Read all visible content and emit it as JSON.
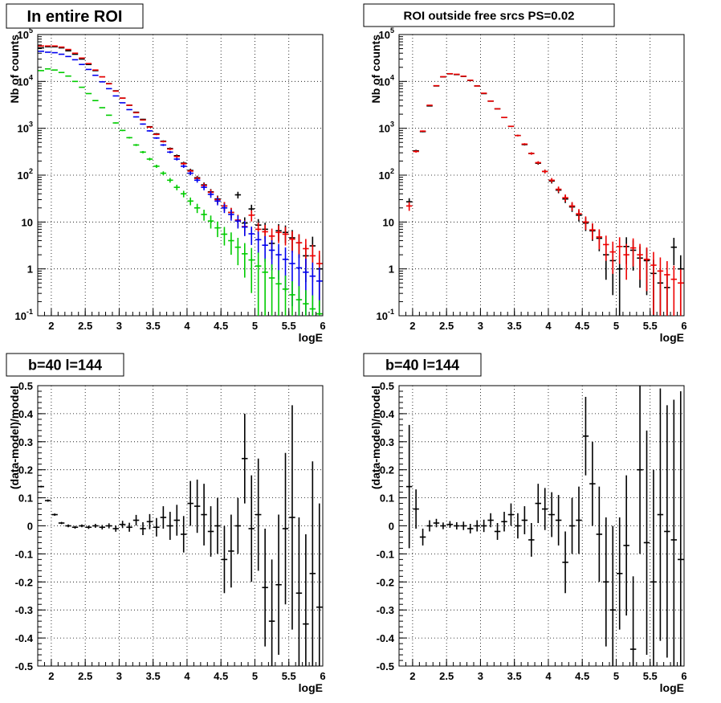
{
  "chart_data": [
    {
      "type": "scatter",
      "title": "In entire ROI",
      "xlabel": "logE",
      "ylabel": "Nb of counts",
      "xlim": [
        1.8,
        6.0
      ],
      "ylim": [
        0.1,
        100000
      ],
      "yscale": "log",
      "grid": true,
      "x_ticks": [
        "2",
        "2.5",
        "3",
        "3.5",
        "4",
        "4.5",
        "5",
        "5.5",
        "6"
      ],
      "y_ticks": [
        "10^-1",
        "1",
        "10",
        "10^2",
        "10^3",
        "10^4",
        "10^5"
      ],
      "series": [
        {
          "color": "#000000",
          "x": [
            1.85,
            1.95,
            2.05,
            2.15,
            2.25,
            2.35,
            2.45,
            2.55,
            2.65,
            2.75,
            2.85,
            2.95,
            3.05,
            3.15,
            3.25,
            3.35,
            3.45,
            3.55,
            3.65,
            3.75,
            3.85,
            3.95,
            4.05,
            4.15,
            4.25,
            4.35,
            4.45,
            4.55,
            4.65,
            4.75,
            4.85,
            4.95,
            5.05,
            5.15,
            5.25,
            5.35,
            5.45,
            5.55,
            5.65,
            5.75,
            5.85,
            5.95
          ],
          "y": [
            52000,
            55000,
            55000,
            52000,
            45000,
            38000,
            30000,
            23000,
            17000,
            12500,
            9000,
            6300,
            4400,
            3100,
            2200,
            1550,
            1080,
            760,
            530,
            370,
            260,
            180,
            126,
            88,
            62,
            44,
            31,
            22,
            16,
            38,
            9.5,
            19,
            8.6,
            7,
            3.5,
            6.5,
            6,
            4.6,
            3.6,
            1.9,
            3.1,
            1
          ]
        },
        {
          "color": "#ee0000",
          "x": [
            1.85,
            1.95,
            2.05,
            2.15,
            2.25,
            2.35,
            2.45,
            2.55,
            2.65,
            2.75,
            2.85,
            2.95,
            3.05,
            3.15,
            3.25,
            3.35,
            3.45,
            3.55,
            3.65,
            3.75,
            3.85,
            3.95,
            4.05,
            4.15,
            4.25,
            4.35,
            4.45,
            4.55,
            4.65,
            4.75,
            4.85,
            4.95,
            5.05,
            5.15,
            5.25,
            5.35,
            5.45,
            5.55,
            5.65,
            5.75,
            5.85,
            5.95
          ],
          "y": [
            57000,
            57000,
            57000,
            54000,
            48000,
            40000,
            31500,
            24000,
            17500,
            12500,
            8900,
            6200,
            4400,
            3100,
            2150,
            1500,
            1060,
            740,
            520,
            360,
            250,
            175,
            122,
            85,
            60,
            43,
            30,
            22,
            16,
            11,
            8,
            14,
            7,
            6.2,
            5,
            6,
            5.5,
            4.3,
            3.6,
            2.7,
            1.9,
            1.3
          ]
        },
        {
          "color": "#0000ee",
          "x": [
            1.85,
            1.95,
            2.05,
            2.15,
            2.25,
            2.35,
            2.45,
            2.55,
            2.65,
            2.75,
            2.85,
            2.95,
            3.05,
            3.15,
            3.25,
            3.35,
            3.45,
            3.55,
            3.65,
            3.75,
            3.85,
            3.95,
            4.05,
            4.15,
            4.25,
            4.35,
            4.45,
            4.55,
            4.65,
            4.75,
            4.85,
            4.95,
            5.05,
            5.15,
            5.25,
            5.35,
            5.45,
            5.55,
            5.65,
            5.75,
            5.85,
            5.95
          ],
          "y": [
            44000,
            42000,
            41000,
            38000,
            34000,
            29000,
            23000,
            18000,
            13500,
            9800,
            7000,
            4900,
            3500,
            2500,
            1750,
            1230,
            880,
            620,
            440,
            310,
            220,
            155,
            110,
            78,
            55,
            39,
            28,
            20,
            14.5,
            10.5,
            7.8,
            5.6,
            4.2,
            3.2,
            2.5,
            2,
            1.6,
            1.3,
            1.05,
            0.85,
            0.7,
            0.55
          ]
        },
        {
          "color": "#00cc00",
          "x": [
            1.85,
            1.95,
            2.05,
            2.15,
            2.25,
            2.35,
            2.45,
            2.55,
            2.65,
            2.75,
            2.85,
            2.95,
            3.05,
            3.15,
            3.25,
            3.35,
            3.45,
            3.55,
            3.65,
            3.75,
            3.85,
            3.95,
            4.05,
            4.15,
            4.25,
            4.35,
            4.45,
            4.55,
            4.65,
            4.75,
            4.85,
            4.95,
            5.05,
            5.15,
            5.25,
            5.35,
            5.45,
            5.55,
            5.65,
            5.75,
            5.85,
            5.95
          ],
          "y": [
            17000,
            18500,
            17500,
            15500,
            13000,
            10000,
            7500,
            5500,
            3900,
            2750,
            1900,
            1300,
            900,
            630,
            440,
            310,
            220,
            155,
            110,
            78,
            55,
            40,
            28,
            20,
            14.5,
            10.5,
            7.5,
            5.5,
            4,
            2.9,
            2.1,
            1.55,
            1.15,
            0.85,
            0.64,
            0.48,
            0.37,
            0.28,
            0.22,
            0.18,
            0.14,
            0.11
          ]
        }
      ]
    },
    {
      "type": "scatter",
      "title": "ROI outside free srcs PS=0.02",
      "xlabel": "logE",
      "ylabel": "Nb of counts",
      "xlim": [
        1.8,
        6.0
      ],
      "ylim": [
        0.1,
        100000
      ],
      "yscale": "log",
      "grid": true,
      "x_ticks": [
        "2",
        "2.5",
        "3",
        "3.5",
        "4",
        "4.5",
        "5",
        "5.5",
        "6"
      ],
      "y_ticks": [
        "10^-1",
        "1",
        "10",
        "10^2",
        "10^3",
        "10^4",
        "10^5"
      ],
      "series": [
        {
          "color": "#000000",
          "x": [
            1.95,
            2.05,
            2.15,
            2.25,
            2.35,
            2.45,
            2.55,
            2.65,
            2.75,
            2.85,
            2.95,
            3.05,
            3.15,
            3.25,
            3.35,
            3.45,
            3.55,
            3.65,
            3.75,
            3.85,
            3.95,
            4.05,
            4.15,
            4.25,
            4.35,
            4.45,
            4.55,
            4.65,
            4.75,
            4.85,
            4.95,
            5.05,
            5.15,
            5.25,
            5.35,
            5.45,
            5.55,
            5.65,
            5.75,
            5.85,
            5.95
          ],
          "y": [
            27,
            330,
            850,
            3000,
            8000,
            12500,
            14500,
            14000,
            12800,
            10500,
            8000,
            5500,
            3800,
            2600,
            1700,
            1100,
            700,
            450,
            290,
            180,
            120,
            75,
            48,
            31,
            21,
            14,
            9.5,
            6.5,
            4.5,
            2,
            1.5,
            1,
            3,
            2.5,
            1.7,
            1.5,
            0.8,
            0.5,
            0.4,
            2.9,
            1
          ]
        },
        {
          "color": "#ee0000",
          "x": [
            1.95,
            2.05,
            2.15,
            2.25,
            2.35,
            2.45,
            2.55,
            2.65,
            2.75,
            2.85,
            2.95,
            3.05,
            3.15,
            3.25,
            3.35,
            3.45,
            3.55,
            3.65,
            3.75,
            3.85,
            3.95,
            4.05,
            4.15,
            4.25,
            4.35,
            4.45,
            4.55,
            4.65,
            4.75,
            4.85,
            4.95,
            5.05,
            5.15,
            5.25,
            5.35,
            5.45,
            5.55,
            5.65,
            5.75,
            5.85,
            5.95
          ],
          "y": [
            22,
            320,
            870,
            3100,
            8100,
            12600,
            14600,
            14200,
            12900,
            10600,
            8000,
            5600,
            3800,
            2600,
            1700,
            1100,
            700,
            460,
            290,
            185,
            120,
            78,
            50,
            33,
            22,
            15,
            10,
            6.8,
            4.8,
            3.3,
            2.3,
            3,
            2,
            2.8,
            2,
            1.6,
            1.2,
            0.9,
            0.75,
            0.6,
            0.5
          ]
        }
      ]
    },
    {
      "type": "scatter",
      "title": "b=40 l=144",
      "xlabel": "logE",
      "ylabel": "(data-model)/model",
      "xlim": [
        1.8,
        6.0
      ],
      "ylim": [
        -0.5,
        0.5
      ],
      "grid": true,
      "x_ticks": [
        "2",
        "2.5",
        "3",
        "3.5",
        "4",
        "4.5",
        "5",
        "5.5",
        "6"
      ],
      "y_ticks": [
        "0.5",
        "0.4",
        "0.3",
        "0.2",
        "0.1",
        "0",
        "-0.1",
        "-0.2",
        "-0.3",
        "-0.4",
        "-0.5"
      ],
      "series": [
        {
          "color": "#000000",
          "x": [
            1.85,
            1.95,
            2.05,
            2.15,
            2.25,
            2.35,
            2.45,
            2.55,
            2.65,
            2.75,
            2.85,
            2.95,
            3.05,
            3.15,
            3.25,
            3.35,
            3.45,
            3.55,
            3.65,
            3.75,
            3.85,
            3.95,
            4.05,
            4.15,
            4.25,
            4.35,
            4.45,
            4.55,
            4.65,
            4.75,
            4.85,
            4.95,
            5.05,
            5.15,
            5.25,
            5.35,
            5.45,
            5.55,
            5.65,
            5.75,
            5.85,
            5.95
          ],
          "y": [
            0.14,
            0.09,
            0.04,
            0.01,
            0.0,
            -0.005,
            0.0,
            -0.005,
            0.0,
            -0.005,
            0.0,
            -0.01,
            0.005,
            -0.005,
            0.02,
            -0.01,
            0.015,
            -0.005,
            0.03,
            0.0,
            0.02,
            -0.03,
            0.08,
            0.07,
            0.04,
            -0.02,
            0.0,
            -0.12,
            -0.09,
            0.0,
            0.24,
            -0.01,
            0.04,
            -0.22,
            -0.34,
            -0.21,
            -0.01,
            0.03,
            -0.24,
            -0.35,
            -0.17,
            -0.29
          ],
          "err": [
            0.003,
            0.004,
            0.004,
            0.004,
            0.005,
            0.005,
            0.005,
            0.006,
            0.007,
            0.008,
            0.009,
            0.011,
            0.013,
            0.016,
            0.019,
            0.023,
            0.027,
            0.033,
            0.04,
            0.05,
            0.055,
            0.065,
            0.08,
            0.095,
            0.11,
            0.09,
            0.1,
            0.12,
            0.13,
            0.1,
            0.16,
            0.19,
            0.2,
            0.21,
            0.22,
            0.25,
            0.27,
            0.4,
            0.27,
            0.32,
            0.4,
            0.37
          ]
        }
      ]
    },
    {
      "type": "scatter",
      "title": "b=40 l=144",
      "xlabel": "logE",
      "ylabel": "(data-model)/model",
      "xlim": [
        1.8,
        6.0
      ],
      "ylim": [
        -0.5,
        0.5
      ],
      "grid": true,
      "x_ticks": [
        "2",
        "2.5",
        "3",
        "3.5",
        "4",
        "4.5",
        "5",
        "5.5",
        "6"
      ],
      "y_ticks": [
        "0.5",
        "0.4",
        "0.3",
        "0.2",
        "0.1",
        "0",
        "-0.1",
        "-0.2",
        "-0.3",
        "-0.4",
        "-0.5"
      ],
      "series": [
        {
          "color": "#000000",
          "x": [
            1.95,
            2.05,
            2.15,
            2.25,
            2.35,
            2.45,
            2.55,
            2.65,
            2.75,
            2.85,
            2.95,
            3.05,
            3.15,
            3.25,
            3.35,
            3.45,
            3.55,
            3.65,
            3.75,
            3.85,
            3.95,
            4.05,
            4.15,
            4.25,
            4.35,
            4.45,
            4.55,
            4.65,
            4.75,
            4.85,
            4.95,
            5.05,
            5.15,
            5.25,
            5.35,
            5.45,
            5.55,
            5.65,
            5.75,
            5.85,
            5.95
          ],
          "y": [
            0.14,
            0.06,
            -0.04,
            0.0,
            0.01,
            0.0,
            0.005,
            0.0,
            0.0,
            -0.01,
            0.0,
            0.0,
            0.02,
            -0.02,
            0.015,
            0.04,
            0.0,
            0.02,
            -0.05,
            0.08,
            0.06,
            0.04,
            0.02,
            -0.13,
            0.0,
            0.02,
            0.32,
            0.15,
            -0.03,
            -0.2,
            -0.3,
            -0.17,
            -0.07,
            -0.44,
            0.2,
            -0.06,
            -0.2,
            0.04,
            -0.02,
            -0.05,
            -0.12
          ],
          "err": [
            0.22,
            0.07,
            0.03,
            0.02,
            0.015,
            0.012,
            0.012,
            0.013,
            0.015,
            0.017,
            0.02,
            0.022,
            0.025,
            0.03,
            0.035,
            0.04,
            0.045,
            0.05,
            0.06,
            0.07,
            0.075,
            0.08,
            0.09,
            0.11,
            0.1,
            0.12,
            0.14,
            0.15,
            0.17,
            0.23,
            0.3,
            0.2,
            0.25,
            0.26,
            0.3,
            0.4,
            0.4,
            0.45,
            0.45,
            0.5,
            0.6
          ]
        }
      ]
    }
  ]
}
